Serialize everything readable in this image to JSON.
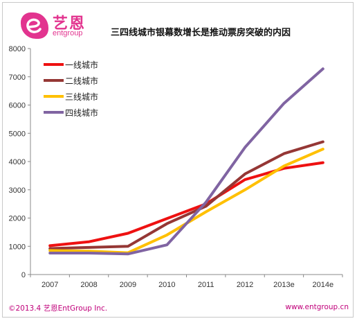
{
  "header": {
    "logo_cn": "艺恩",
    "logo_en": "entgroup",
    "title": "三四线城市银幕数增长是推动票房突破的内因"
  },
  "footer": {
    "copyright": "©2013.4 艺恩EntGroup Inc.",
    "website": "www.entgroup.cn"
  },
  "colors": {
    "brand": "#e2348f",
    "footer_text": "#c0007a"
  },
  "chart_data": {
    "type": "line",
    "categories": [
      "2007",
      "2008",
      "2009",
      "2010",
      "2011",
      "2012",
      "2013e",
      "2014e"
    ],
    "series": [
      {
        "name": "一线城市",
        "color": "#ee1111",
        "values": [
          1020,
          1160,
          1460,
          1980,
          2500,
          3360,
          3760,
          3960
        ]
      },
      {
        "name": "二线城市",
        "color": "#953735",
        "values": [
          920,
          960,
          1000,
          1800,
          2420,
          3560,
          4280,
          4700
        ]
      },
      {
        "name": "三线城市",
        "color": "#ffc000",
        "values": [
          850,
          830,
          770,
          1400,
          2220,
          3000,
          3840,
          4440
        ]
      },
      {
        "name": "四线城市",
        "color": "#8064a2",
        "values": [
          760,
          760,
          730,
          1050,
          2560,
          4500,
          6060,
          7280
        ]
      }
    ],
    "ylim": [
      0,
      8000
    ],
    "yticks": [
      0,
      1000,
      2000,
      3000,
      4000,
      5000,
      6000,
      7000,
      8000
    ],
    "grid": false,
    "legend_position": "top-left"
  }
}
